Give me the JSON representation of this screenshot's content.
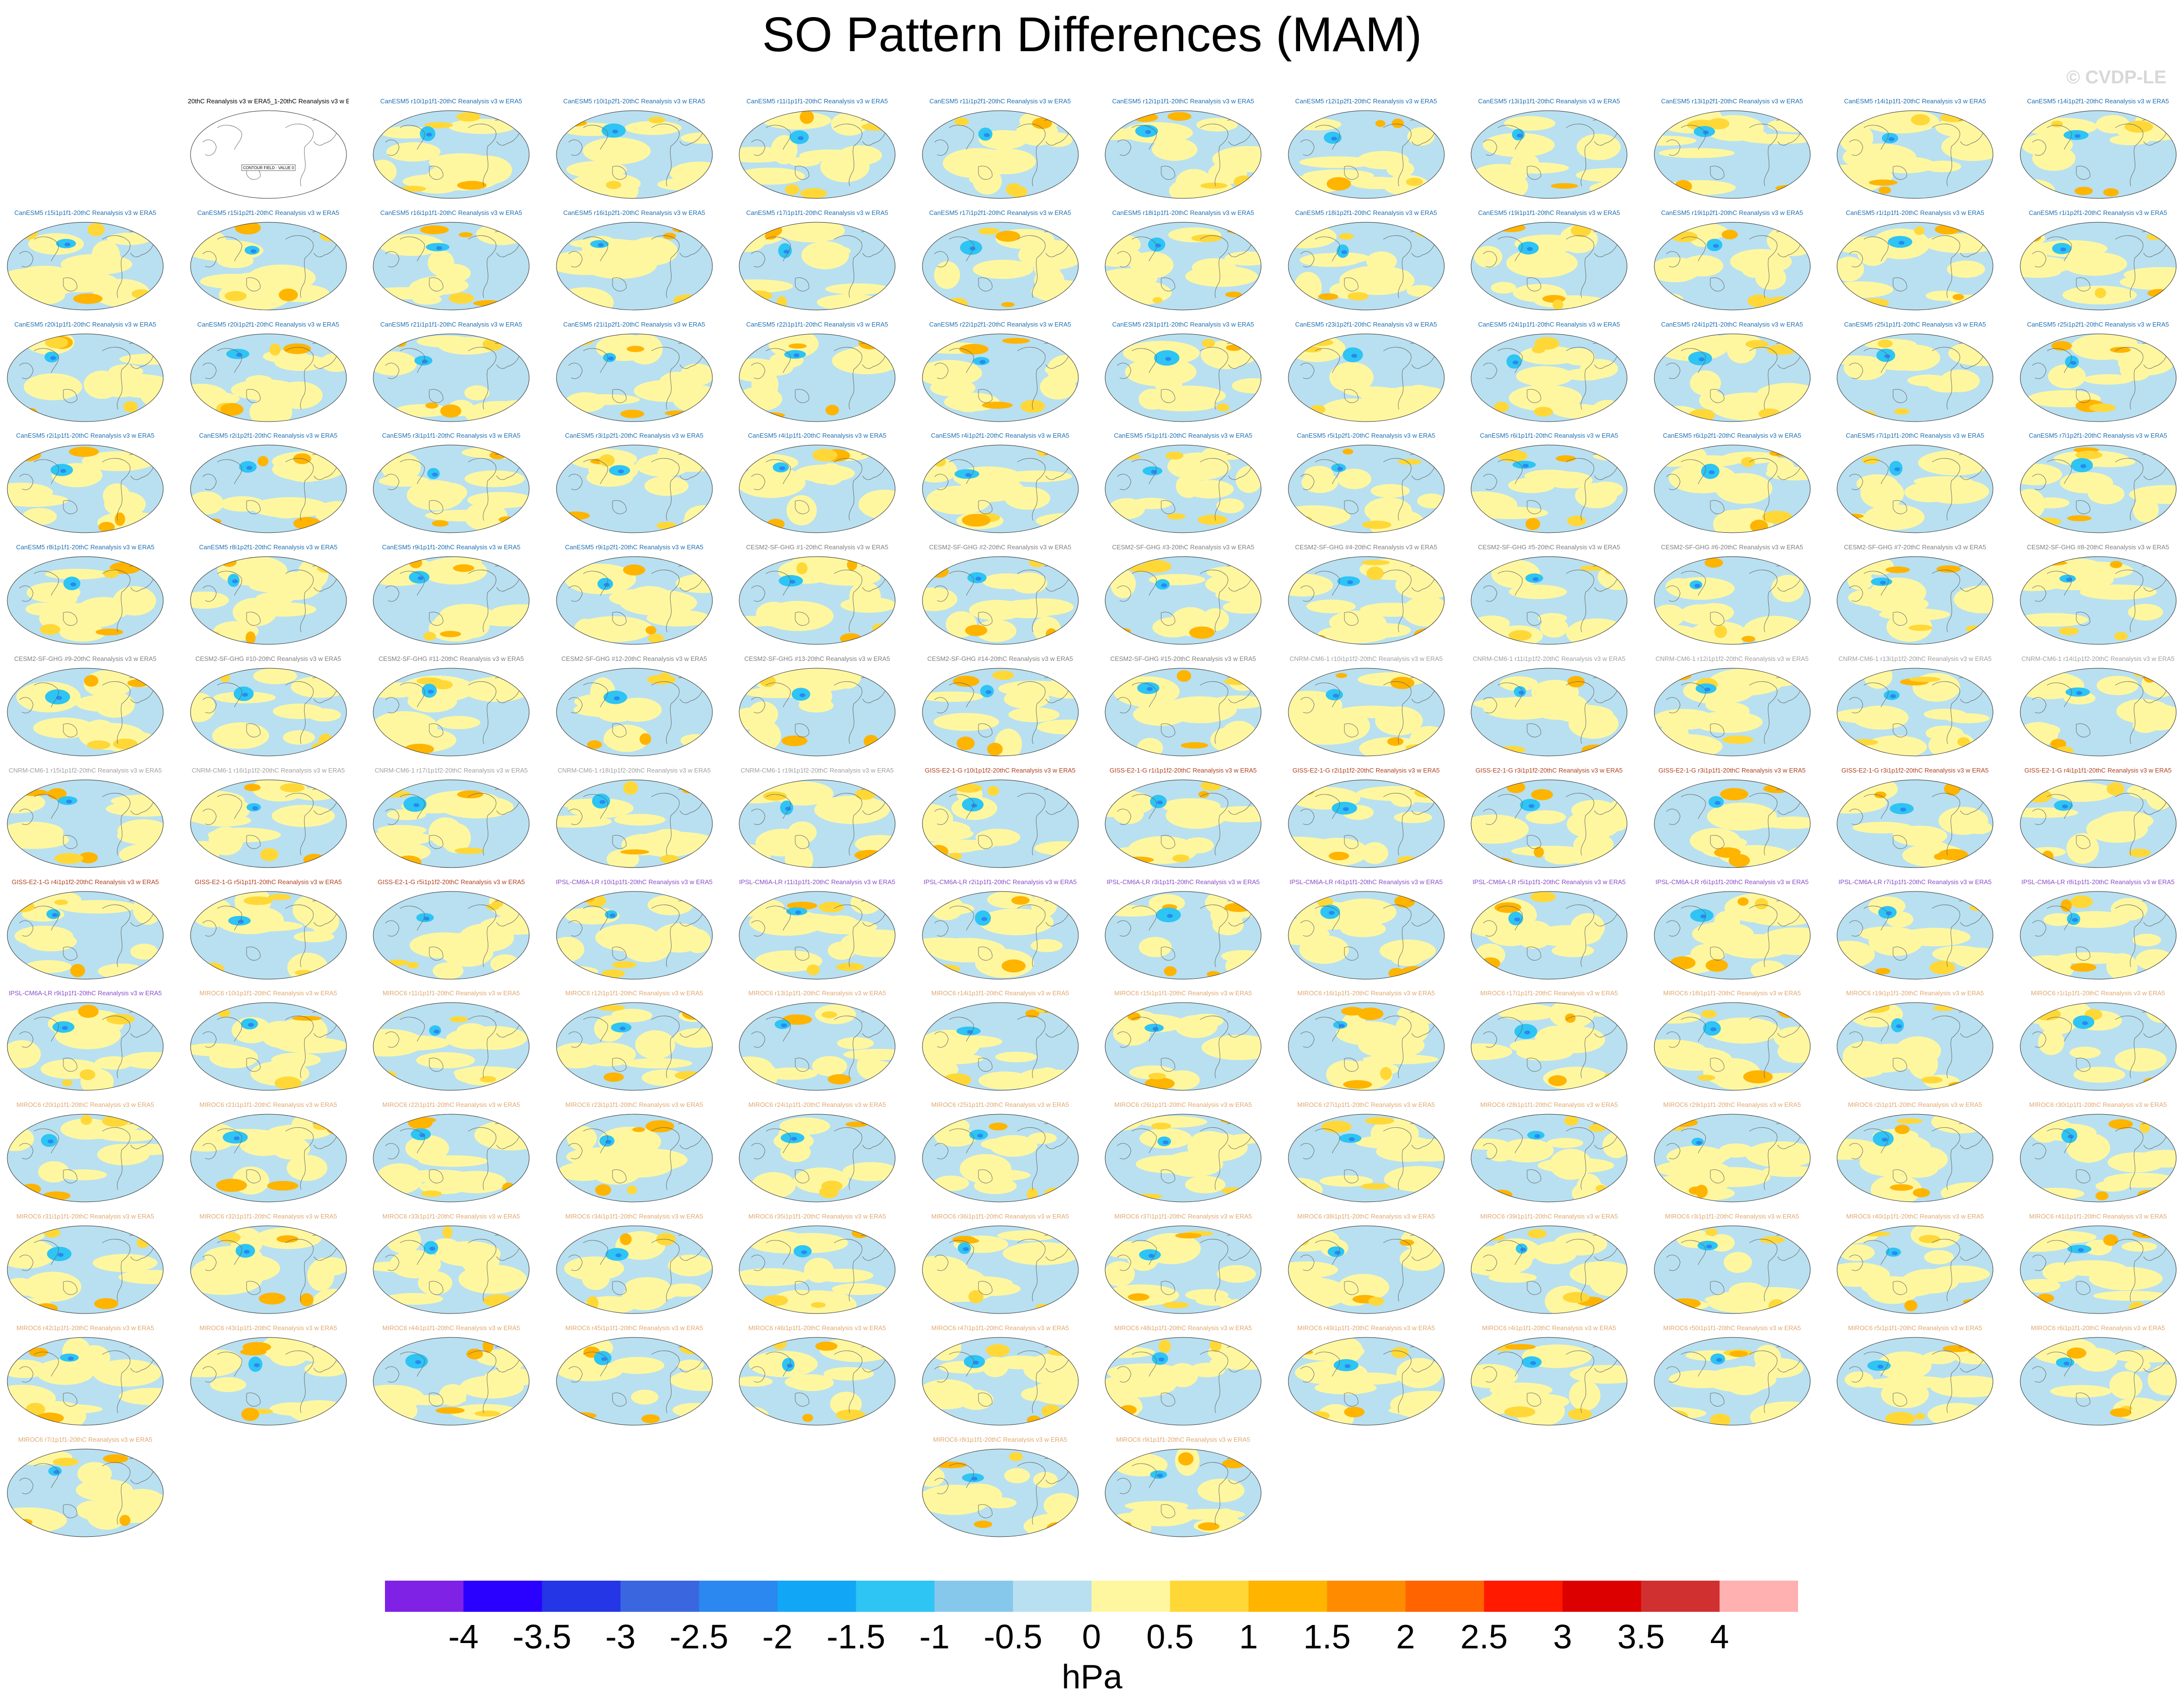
{
  "title": "SO Pattern Differences (MAM)",
  "copyright": "© CVDP-LE",
  "chart_data": {
    "type": "heatmap",
    "title": "SO Pattern Differences (MAM)",
    "units": "hPa",
    "colorbar": {
      "labels": [
        "-4",
        "-3.5",
        "-3",
        "-2.5",
        "-2",
        "-1.5",
        "-1",
        "-0.5",
        "0",
        "0.5",
        "1",
        "1.5",
        "2",
        "2.5",
        "3",
        "3.5",
        "4"
      ],
      "colors": [
        "#7f22e6",
        "#2a00ff",
        "#2436e6",
        "#3a66e0",
        "#2a88f0",
        "#12a6f6",
        "#2ec4f4",
        "#86c8ec",
        "#b8e0f0",
        "#fff7a0",
        "#ffd838",
        "#ffb400",
        "#ff8c00",
        "#ff6400",
        "#ff1a00",
        "#dc0000",
        "#d03030",
        "#ffb0b0"
      ]
    },
    "panels": [
      {
        "label": "20thC Reanalysis v3 w ERA5_1-20thC Reanalysis v3 w ERA5",
        "group": "obs",
        "note": "CONTOUR FIELD - VALUE 0"
      },
      {
        "label": "CanESM5 r10i1p1f1-20thC Reanalysis v3 w ERA5",
        "group": "CanESM5"
      },
      {
        "label": "CanESM5 r10i1p2f1-20thC Reanalysis v3 w ERA5",
        "group": "CanESM5"
      },
      {
        "label": "CanESM5 r11i1p1f1-20thC Reanalysis v3 w ERA5",
        "group": "CanESM5"
      },
      {
        "label": "CanESM5 r11i1p2f1-20thC Reanalysis v3 w ERA5",
        "group": "CanESM5"
      },
      {
        "label": "CanESM5 r12i1p1f1-20thC Reanalysis v3 w ERA5",
        "group": "CanESM5"
      },
      {
        "label": "CanESM5 r12i1p2f1-20thC Reanalysis v3 w ERA5",
        "group": "CanESM5"
      },
      {
        "label": "CanESM5 r13i1p1f1-20thC Reanalysis v3 w ERA5",
        "group": "CanESM5"
      },
      {
        "label": "CanESM5 r13i1p2f1-20thC Reanalysis v3 w ERA5",
        "group": "CanESM5"
      },
      {
        "label": "CanESM5 r14i1p1f1-20thC Reanalysis v3 w ERA5",
        "group": "CanESM5"
      },
      {
        "label": "CanESM5 r14i1p2f1-20thC Reanalysis v3 w ERA5",
        "group": "CanESM5"
      },
      {
        "label": "CanESM5 r15i1p1f1-20thC Reanalysis v3 w ERA5",
        "group": "CanESM5"
      },
      {
        "label": "CanESM5 r15i1p2f1-20thC Reanalysis v3 w ERA5",
        "group": "CanESM5"
      },
      {
        "label": "CanESM5 r16i1p1f1-20thC Reanalysis v3 w ERA5",
        "group": "CanESM5"
      },
      {
        "label": "CanESM5 r16i1p2f1-20thC Reanalysis v3 w ERA5",
        "group": "CanESM5"
      },
      {
        "label": "CanESM5 r17i1p1f1-20thC Reanalysis v3 w ERA5",
        "group": "CanESM5"
      },
      {
        "label": "CanESM5 r17i1p2f1-20thC Reanalysis v3 w ERA5",
        "group": "CanESM5"
      },
      {
        "label": "CanESM5 r18i1p1f1-20thC Reanalysis v3 w ERA5",
        "group": "CanESM5"
      },
      {
        "label": "CanESM5 r18i1p2f1-20thC Reanalysis v3 w ERA5",
        "group": "CanESM5"
      },
      {
        "label": "CanESM5 r19i1p1f1-20thC Reanalysis v3 w ERA5",
        "group": "CanESM5"
      },
      {
        "label": "CanESM5 r19i1p2f1-20thC Reanalysis v3 w ERA5",
        "group": "CanESM5"
      },
      {
        "label": "CanESM5 r1i1p1f1-20thC Reanalysis v3 w ERA5",
        "group": "CanESM5"
      },
      {
        "label": "CanESM5 r1i1p2f1-20thC Reanalysis v3 w ERA5",
        "group": "CanESM5"
      },
      {
        "label": "CanESM5 r20i1p1f1-20thC Reanalysis v3 w ERA5",
        "group": "CanESM5"
      },
      {
        "label": "CanESM5 r20i1p2f1-20thC Reanalysis v3 w ERA5",
        "group": "CanESM5"
      },
      {
        "label": "CanESM5 r21i1p1f1-20thC Reanalysis v3 w ERA5",
        "group": "CanESM5"
      },
      {
        "label": "CanESM5 r21i1p2f1-20thC Reanalysis v3 w ERA5",
        "group": "CanESM5"
      },
      {
        "label": "CanESM5 r22i1p1f1-20thC Reanalysis v3 w ERA5",
        "group": "CanESM5"
      },
      {
        "label": "CanESM5 r22i1p2f1-20thC Reanalysis v3 w ERA5",
        "group": "CanESM5"
      },
      {
        "label": "CanESM5 r23i1p1f1-20thC Reanalysis v3 w ERA5",
        "group": "CanESM5"
      },
      {
        "label": "CanESM5 r23i1p2f1-20thC Reanalysis v3 w ERA5",
        "group": "CanESM5"
      },
      {
        "label": "CanESM5 r24i1p1f1-20thC Reanalysis v3 w ERA5",
        "group": "CanESM5"
      },
      {
        "label": "CanESM5 r24i1p2f1-20thC Reanalysis v3 w ERA5",
        "group": "CanESM5"
      },
      {
        "label": "CanESM5 r25i1p1f1-20thC Reanalysis v3 w ERA5",
        "group": "CanESM5"
      },
      {
        "label": "CanESM5 r25i1p2f1-20thC Reanalysis v3 w ERA5",
        "group": "CanESM5"
      },
      {
        "label": "CanESM5 r2i1p1f1-20thC Reanalysis v3 w ERA5",
        "group": "CanESM5"
      },
      {
        "label": "CanESM5 r2i1p2f1-20thC Reanalysis v3 w ERA5",
        "group": "CanESM5"
      },
      {
        "label": "CanESM5 r3i1p1f1-20thC Reanalysis v3 w ERA5",
        "group": "CanESM5"
      },
      {
        "label": "CanESM5 r3i1p2f1-20thC Reanalysis v3 w ERA5",
        "group": "CanESM5"
      },
      {
        "label": "CanESM5 r4i1p1f1-20thC Reanalysis v3 w ERA5",
        "group": "CanESM5"
      },
      {
        "label": "CanESM5 r4i1p2f1-20thC Reanalysis v3 w ERA5",
        "group": "CanESM5"
      },
      {
        "label": "CanESM5 r5i1p1f1-20thC Reanalysis v3 w ERA5",
        "group": "CanESM5"
      },
      {
        "label": "CanESM5 r5i1p2f1-20thC Reanalysis v3 w ERA5",
        "group": "CanESM5"
      },
      {
        "label": "CanESM5 r6i1p1f1-20thC Reanalysis v3 w ERA5",
        "group": "CanESM5"
      },
      {
        "label": "CanESM5 r6i1p2f1-20thC Reanalysis v3 w ERA5",
        "group": "CanESM5"
      },
      {
        "label": "CanESM5 r7i1p1f1-20thC Reanalysis v3 w ERA5",
        "group": "CanESM5"
      },
      {
        "label": "CanESM5 r7i1p2f1-20thC Reanalysis v3 w ERA5",
        "group": "CanESM5"
      },
      {
        "label": "CanESM5 r8i1p1f1-20thC Reanalysis v3 w ERA5",
        "group": "CanESM5"
      },
      {
        "label": "CanESM5 r8i1p2f1-20thC Reanalysis v3 w ERA5",
        "group": "CanESM5"
      },
      {
        "label": "CanESM5 r9i1p1f1-20thC Reanalysis v3 w ERA5",
        "group": "CanESM5"
      },
      {
        "label": "CanESM5 r9i1p2f1-20thC Reanalysis v3 w ERA5",
        "group": "CanESM5"
      },
      {
        "label": "CESM2-SF-GHG #1-20thC Reanalysis v3 w ERA5",
        "group": "CESM2-SF-GHG"
      },
      {
        "label": "CESM2-SF-GHG #2-20thC Reanalysis v3 w ERA5",
        "group": "CESM2-SF-GHG"
      },
      {
        "label": "CESM2-SF-GHG #3-20thC Reanalysis v3 w ERA5",
        "group": "CESM2-SF-GHG"
      },
      {
        "label": "CESM2-SF-GHG #4-20thC Reanalysis v3 w ERA5",
        "group": "CESM2-SF-GHG"
      },
      {
        "label": "CESM2-SF-GHG #5-20thC Reanalysis v3 w ERA5",
        "group": "CESM2-SF-GHG"
      },
      {
        "label": "CESM2-SF-GHG #6-20thC Reanalysis v3 w ERA5",
        "group": "CESM2-SF-GHG"
      },
      {
        "label": "CESM2-SF-GHG #7-20thC Reanalysis v3 w ERA5",
        "group": "CESM2-SF-GHG"
      },
      {
        "label": "CESM2-SF-GHG #8-20thC Reanalysis v3 w ERA5",
        "group": "CESM2-SF-GHG"
      },
      {
        "label": "CESM2-SF-GHG #9-20thC Reanalysis v3 w ERA5",
        "group": "CESM2-SF-GHG"
      },
      {
        "label": "CESM2-SF-GHG #10-20thC Reanalysis v3 w ERA5",
        "group": "CESM2-SF-GHG"
      },
      {
        "label": "CESM2-SF-GHG #11-20thC Reanalysis v3 w ERA5",
        "group": "CESM2-SF-GHG"
      },
      {
        "label": "CESM2-SF-GHG #12-20thC Reanalysis v3 w ERA5",
        "group": "CESM2-SF-GHG"
      },
      {
        "label": "CESM2-SF-GHG #13-20thC Reanalysis v3 w ERA5",
        "group": "CESM2-SF-GHG"
      },
      {
        "label": "CESM2-SF-GHG #14-20thC Reanalysis v3 w ERA5",
        "group": "CESM2-SF-GHG"
      },
      {
        "label": "CESM2-SF-GHG #15-20thC Reanalysis v3 w ERA5",
        "group": "CESM2-SF-GHG"
      },
      {
        "label": "CNRM-CM6-1 r10i1p1f2-20thC Reanalysis v3 w ERA5",
        "group": "CNRM-CM6-1"
      },
      {
        "label": "CNRM-CM6-1 r11i1p1f2-20thC Reanalysis v3 w ERA5",
        "group": "CNRM-CM6-1"
      },
      {
        "label": "CNRM-CM6-1 r12i1p1f2-20thC Reanalysis v3 w ERA5",
        "group": "CNRM-CM6-1"
      },
      {
        "label": "CNRM-CM6-1 r13i1p1f2-20thC Reanalysis v3 w ERA5",
        "group": "CNRM-CM6-1"
      },
      {
        "label": "CNRM-CM6-1 r14i1p1f2-20thC Reanalysis v3 w ERA5",
        "group": "CNRM-CM6-1"
      },
      {
        "label": "CNRM-CM6-1 r15i1p1f2-20thC Reanalysis v3 w ERA5",
        "group": "CNRM-CM6-1"
      },
      {
        "label": "CNRM-CM6-1 r16i1p1f2-20thC Reanalysis v3 w ERA5",
        "group": "CNRM-CM6-1"
      },
      {
        "label": "CNRM-CM6-1 r17i1p1f2-20thC Reanalysis v3 w ERA5",
        "group": "CNRM-CM6-1"
      },
      {
        "label": "CNRM-CM6-1 r18i1p1f2-20thC Reanalysis v3 w ERA5",
        "group": "CNRM-CM6-1"
      },
      {
        "label": "CNRM-CM6-1 r19i1p1f2-20thC Reanalysis v3 w ERA5",
        "group": "CNRM-CM6-1"
      },
      {
        "label": "GISS-E2-1-G r10i1p1f2-20thC Reanalysis v3 w ERA5",
        "group": "GISS-E2-1-G"
      },
      {
        "label": "GISS-E2-1-G r1i1p1f2-20thC Reanalysis v3 w ERA5",
        "group": "GISS-E2-1-G"
      },
      {
        "label": "GISS-E2-1-G r2i1p1f2-20thC Reanalysis v3 w ERA5",
        "group": "GISS-E2-1-G"
      },
      {
        "label": "GISS-E2-1-G r3i1p1f2-20thC Reanalysis v3 w ERA5",
        "group": "GISS-E2-1-G"
      },
      {
        "label": "GISS-E2-1-G r3i1p1f1-20thC Reanalysis v3 w ERA5",
        "group": "GISS-E2-1-G"
      },
      {
        "label": "GISS-E2-1-G r3i1p1f2-20thC Reanalysis v3 w ERA5",
        "group": "GISS-E2-1-G"
      },
      {
        "label": "GISS-E2-1-G r4i1p1f1-20thC Reanalysis v3 w ERA5",
        "group": "GISS-E2-1-G"
      },
      {
        "label": "GISS-E2-1-G r4i1p1f2-20thC Reanalysis v3 w ERA5",
        "group": "GISS-E2-1-G"
      },
      {
        "label": "GISS-E2-1-G r5i1p1f1-20thC Reanalysis v3 w ERA5",
        "group": "GISS-E2-1-G"
      },
      {
        "label": "GISS-E2-1-G r5i1p1f2-20thC Reanalysis v3 w ERA5",
        "group": "GISS-E2-1-G"
      },
      {
        "label": "IPSL-CM6A-LR r10i1p1f1-20thC Reanalysis v3 w ERA5",
        "group": "IPSL-CM6A-LR"
      },
      {
        "label": "IPSL-CM6A-LR r11i1p1f1-20thC Reanalysis v3 w ERA5",
        "group": "IPSL-CM6A-LR"
      },
      {
        "label": "IPSL-CM6A-LR r2i1p1f1-20thC Reanalysis v3 w ERA5",
        "group": "IPSL-CM6A-LR"
      },
      {
        "label": "IPSL-CM6A-LR r3i1p1f1-20thC Reanalysis v3 w ERA5",
        "group": "IPSL-CM6A-LR"
      },
      {
        "label": "IPSL-CM6A-LR r4i1p1f1-20thC Reanalysis v3 w ERA5",
        "group": "IPSL-CM6A-LR"
      },
      {
        "label": "IPSL-CM6A-LR r5i1p1f1-20thC Reanalysis v3 w ERA5",
        "group": "IPSL-CM6A-LR"
      },
      {
        "label": "IPSL-CM6A-LR r6i1p1f1-20thC Reanalysis v3 w ERA5",
        "group": "IPSL-CM6A-LR"
      },
      {
        "label": "IPSL-CM6A-LR r7i1p1f1-20thC Reanalysis v3 w ERA5",
        "group": "IPSL-CM6A-LR"
      },
      {
        "label": "IPSL-CM6A-LR r8i1p1f1-20thC Reanalysis v3 w ERA5",
        "group": "IPSL-CM6A-LR"
      },
      {
        "label": "IPSL-CM6A-LR r9i1p1f1-20thC Reanalysis v3 w ERA5",
        "group": "IPSL-CM6A-LR"
      },
      {
        "label": "MIROC6 r10i1p1f1-20thC Reanalysis v3 w ERA5",
        "group": "MIROC6"
      },
      {
        "label": "MIROC6 r11i1p1f1-20thC Reanalysis v3 w ERA5",
        "group": "MIROC6"
      },
      {
        "label": "MIROC6 r12i1p1f1-20thC Reanalysis v3 w ERA5",
        "group": "MIROC6"
      },
      {
        "label": "MIROC6 r13i1p1f1-20thC Reanalysis v3 w ERA5",
        "group": "MIROC6"
      },
      {
        "label": "MIROC6 r14i1p1f1-20thC Reanalysis v3 w ERA5",
        "group": "MIROC6"
      },
      {
        "label": "MIROC6 r15i1p1f1-20thC Reanalysis v3 w ERA5",
        "group": "MIROC6"
      },
      {
        "label": "MIROC6 r16i1p1f1-20thC Reanalysis v3 w ERA5",
        "group": "MIROC6"
      },
      {
        "label": "MIROC6 r17i1p1f1-20thC Reanalysis v3 w ERA5",
        "group": "MIROC6"
      },
      {
        "label": "MIROC6 r18i1p1f1-20thC Reanalysis v3 w ERA5",
        "group": "MIROC6"
      },
      {
        "label": "MIROC6 r19i1p1f1-20thC Reanalysis v3 w ERA5",
        "group": "MIROC6"
      },
      {
        "label": "MIROC6 r1i1p1f1-20thC Reanalysis v3 w ERA5",
        "group": "MIROC6"
      },
      {
        "label": "MIROC6 r20i1p1f1-20thC Reanalysis v3 w ERA5",
        "group": "MIROC6"
      },
      {
        "label": "MIROC6 r21i1p1f1-20thC Reanalysis v3 w ERA5",
        "group": "MIROC6"
      },
      {
        "label": "MIROC6 r22i1p1f1-20thC Reanalysis v3 w ERA5",
        "group": "MIROC6"
      },
      {
        "label": "MIROC6 r23i1p1f1-20thC Reanalysis v3 w ERA5",
        "group": "MIROC6"
      },
      {
        "label": "MIROC6 r24i1p1f1-20thC Reanalysis v3 w ERA5",
        "group": "MIROC6"
      },
      {
        "label": "MIROC6 r25i1p1f1-20thC Reanalysis v3 w ERA5",
        "group": "MIROC6"
      },
      {
        "label": "MIROC6 r26i1p1f1-20thC Reanalysis v3 w ERA5",
        "group": "MIROC6"
      },
      {
        "label": "MIROC6 r27i1p1f1-20thC Reanalysis v3 w ERA5",
        "group": "MIROC6"
      },
      {
        "label": "MIROC6 r28i1p1f1-20thC Reanalysis v3 w ERA5",
        "group": "MIROC6"
      },
      {
        "label": "MIROC6 r29i1p1f1-20thC Reanalysis v3 w ERA5",
        "group": "MIROC6"
      },
      {
        "label": "MIROC6 r2i1p1f1-20thC Reanalysis v3 w ERA5",
        "group": "MIROC6"
      },
      {
        "label": "MIROC6 r30i1p1f1-20thC Reanalysis v3 w ERA5",
        "group": "MIROC6"
      },
      {
        "label": "MIROC6 r31i1p1f1-20thC Reanalysis v3 w ERA5",
        "group": "MIROC6"
      },
      {
        "label": "MIROC6 r32i1p1f1-20thC Reanalysis v3 w ERA5",
        "group": "MIROC6"
      },
      {
        "label": "MIROC6 r33i1p1f1-20thC Reanalysis v3 w ERA5",
        "group": "MIROC6"
      },
      {
        "label": "MIROC6 r34i1p1f1-20thC Reanalysis v3 w ERA5",
        "group": "MIROC6"
      },
      {
        "label": "MIROC6 r35i1p1f1-20thC Reanalysis v3 w ERA5",
        "group": "MIROC6"
      },
      {
        "label": "MIROC6 r36i1p1f1-20thC Reanalysis v3 w ERA5",
        "group": "MIROC6"
      },
      {
        "label": "MIROC6 r37i1p1f1-20thC Reanalysis v3 w ERA5",
        "group": "MIROC6"
      },
      {
        "label": "MIROC6 r38i1p1f1-20thC Reanalysis v3 w ERA5",
        "group": "MIROC6"
      },
      {
        "label": "MIROC6 r39i1p1f1-20thC Reanalysis v3 w ERA5",
        "group": "MIROC6"
      },
      {
        "label": "MIROC6 r3i1p1f1-20thC Reanalysis v3 w ERA5",
        "group": "MIROC6"
      },
      {
        "label": "MIROC6 r40i1p1f1-20thC Reanalysis v3 w ERA5",
        "group": "MIROC6"
      },
      {
        "label": "MIROC6 r41i1p1f1-20thC Reanalysis v3 w ERA5",
        "group": "MIROC6"
      },
      {
        "label": "MIROC6 r42i1p1f1-20thC Reanalysis v3 w ERA5",
        "group": "MIROC6"
      },
      {
        "label": "MIROC6 r43i1p1f1-20thC Reanalysis v3 w ERA5",
        "group": "MIROC6"
      },
      {
        "label": "MIROC6 r44i1p1f1-20thC Reanalysis v3 w ERA5",
        "group": "MIROC6"
      },
      {
        "label": "MIROC6 r45i1p1f1-20thC Reanalysis v3 w ERA5",
        "group": "MIROC6"
      },
      {
        "label": "MIROC6 r46i1p1f1-20thC Reanalysis v3 w ERA5",
        "group": "MIROC6"
      },
      {
        "label": "MIROC6 r47i1p1f1-20thC Reanalysis v3 w ERA5",
        "group": "MIROC6"
      },
      {
        "label": "MIROC6 r48i1p1f1-20thC Reanalysis v3 w ERA5",
        "group": "MIROC6"
      },
      {
        "label": "MIROC6 r49i1p1f1-20thC Reanalysis v3 w ERA5",
        "group": "MIROC6"
      },
      {
        "label": "MIROC6 r4i1p1f1-20thC Reanalysis v3 w ERA5",
        "group": "MIROC6"
      },
      {
        "label": "MIROC6 r50i1p1f1-20thC Reanalysis v3 w ERA5",
        "group": "MIROC6"
      },
      {
        "label": "MIROC6 r5i1p1f1-20thC Reanalysis v3 w ERA5",
        "group": "MIROC6"
      },
      {
        "label": "MIROC6 r6i1p1f1-20thC Reanalysis v3 w ERA5",
        "group": "MIROC6"
      },
      {
        "label": "MIROC6 r7i1p1f1-20thC Reanalysis v3 w ERA5",
        "group": "MIROC6"
      },
      {
        "label": "MIROC6 r8i1p1f1-20thC Reanalysis v3 w ERA5",
        "group": "MIROC6"
      },
      {
        "label": "MIROC6 r9i1p1f1-20thC Reanalysis v3 w ERA5",
        "group": "MIROC6"
      }
    ],
    "group_colors": {
      "obs": "#000000",
      "CanESM5": "#1f6fb0",
      "CESM2-SF-GHG": "#808080",
      "CNRM-CM6-1": "#a0a0a0",
      "GISS-E2-1-G": "#b04020",
      "IPSL-CM6A-LR": "#8a4cc8",
      "MIROC6": "#e0a870"
    }
  }
}
